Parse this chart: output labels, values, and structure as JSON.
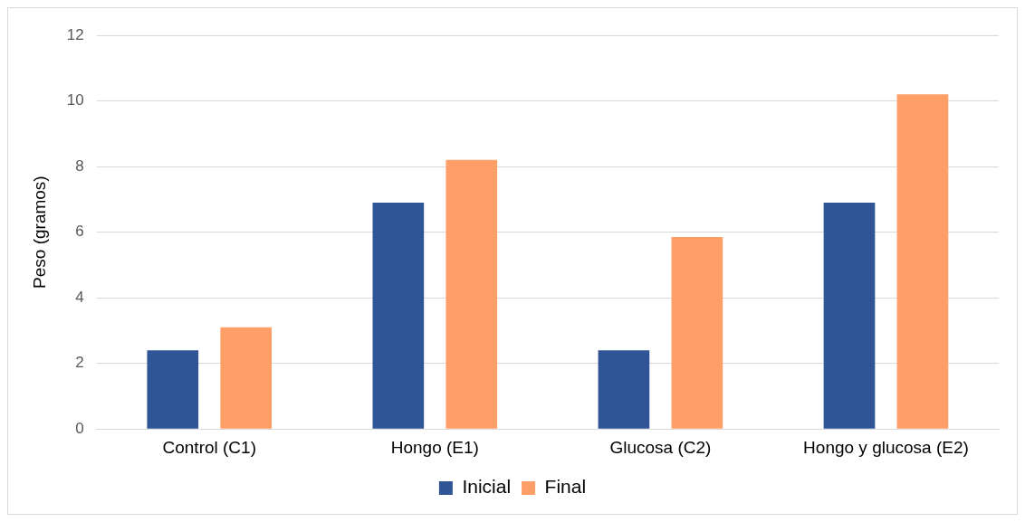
{
  "chart_data": {
    "type": "bar",
    "ylabel": "Peso (gramos)",
    "categories": [
      "Control (C1)",
      "Hongo (E1)",
      "Glucosa (C2)",
      "Hongo y glucosa (E2)"
    ],
    "series": [
      {
        "name": "Inicial",
        "color": "#2f5597",
        "values": [
          2.4,
          6.9,
          2.4,
          6.9
        ]
      },
      {
        "name": "Final",
        "color": "#ff9e66",
        "values": [
          3.1,
          8.2,
          5.85,
          10.2
        ]
      }
    ],
    "ylim": [
      0,
      12
    ],
    "yticks": [
      0,
      2,
      4,
      6,
      8,
      10,
      12
    ],
    "grid": "y",
    "legend": "bottom"
  }
}
